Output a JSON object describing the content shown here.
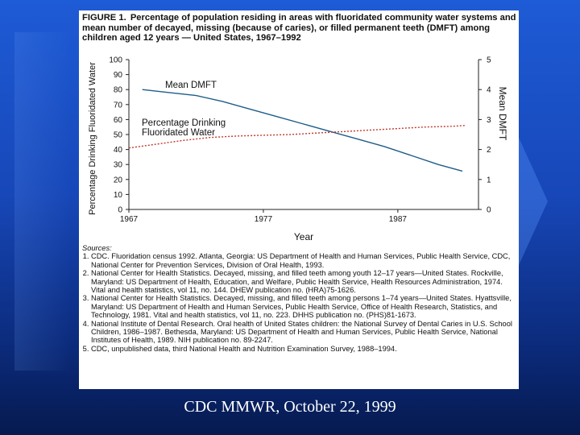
{
  "figure": {
    "label": "FIGURE 1.",
    "title": "Percentage of population residing in areas with fluoridated community water systems and mean number of decayed, missing (because of caries), or filled permanent teeth (DMFT) among children aged 12 years — United States, 1967–1992"
  },
  "chart_data": {
    "type": "line",
    "x": [
      1967,
      1969,
      1971,
      1973,
      1975,
      1977,
      1979,
      1981,
      1983,
      1985,
      1987,
      1989,
      1991,
      1992
    ],
    "xlabel": "Year",
    "x_ticks": [
      "1967",
      "1977",
      "1987"
    ],
    "xlim": [
      1967,
      1993
    ],
    "ylabel_left": "Percentage Drinking Fluoridated Water",
    "y_ticks_left": [
      "0",
      "10",
      "20",
      "30",
      "40",
      "50",
      "60",
      "70",
      "80",
      "90",
      "100"
    ],
    "ylim_left": [
      0,
      100
    ],
    "ylabel_right": "Mean DMFT",
    "y_ticks_right": [
      "0",
      "1",
      "2",
      "3",
      "4",
      "5"
    ],
    "ylim_right": [
      0,
      5
    ],
    "series": [
      {
        "name": "Mean DMFT",
        "axis": "right",
        "color": "#1f5d8a",
        "x": [
          1968,
          1970,
          1972,
          1974,
          1976,
          1978,
          1980,
          1982,
          1984,
          1986,
          1988,
          1990,
          1991.8
        ],
        "values": [
          4.0,
          3.9,
          3.8,
          3.6,
          3.35,
          3.1,
          2.85,
          2.6,
          2.35,
          2.1,
          1.8,
          1.5,
          1.28
        ]
      },
      {
        "name": "Percentage Drinking Fluoridated Water",
        "axis": "left",
        "color": "#c0392b",
        "x": [
          1967,
          1969,
          1971,
          1973,
          1975,
          1977,
          1979,
          1981,
          1983,
          1985,
          1987,
          1989,
          1991,
          1992
        ],
        "values": [
          41,
          43.5,
          46,
          48,
          49,
          49.5,
          50,
          51,
          52,
          53,
          54,
          55,
          55.5,
          56
        ]
      }
    ],
    "annotations": [
      {
        "text": "Mean DMFT",
        "anchor": "above-line"
      },
      {
        "text": "Percentage Drinking\nFluoridated Water",
        "anchor": "above-line"
      }
    ]
  },
  "sources": {
    "header": "Sources:",
    "items": [
      "CDC. Fluoridation census 1992. Atlanta, Georgia: US Department of Health and Human Services, Public Health Service, CDC, National Center for Prevention Services, Division of Oral Health, 1993.",
      "National Center for Health Statistics. Decayed, missing, and filled teeth among youth 12–17 years—United States. Rockville, Maryland: US Department of Health, Education, and Welfare, Public Health Service, Health Resources Administration, 1974. Vital and health statistics, vol 11, no. 144. DHEW publication no. (HRA)75-1626.",
      "National Center for Health Statistics. Decayed, missing, and filled teeth among persons 1–74 years—United States. Hyattsville, Maryland: US Department of Health and Human Services, Public Health Service, Office of Health Research, Statistics, and Technology, 1981. Vital and health statistics, vol 11, no. 223. DHHS publication no. (PHS)81-1673.",
      "National Institute of Dental Research. Oral health of United States children: the National Survey of Dental Caries in U.S. School Children, 1986–1987. Bethesda, Maryland: US Department of Health and Human Services, Public Health Service, National Institutes of Health, 1989. NIH publication no. 89-2247.",
      "CDC, unpublished data, third National Health and Nutrition Examination Survey, 1988–1994."
    ]
  },
  "caption": "CDC MMWR, October 22, 1999"
}
